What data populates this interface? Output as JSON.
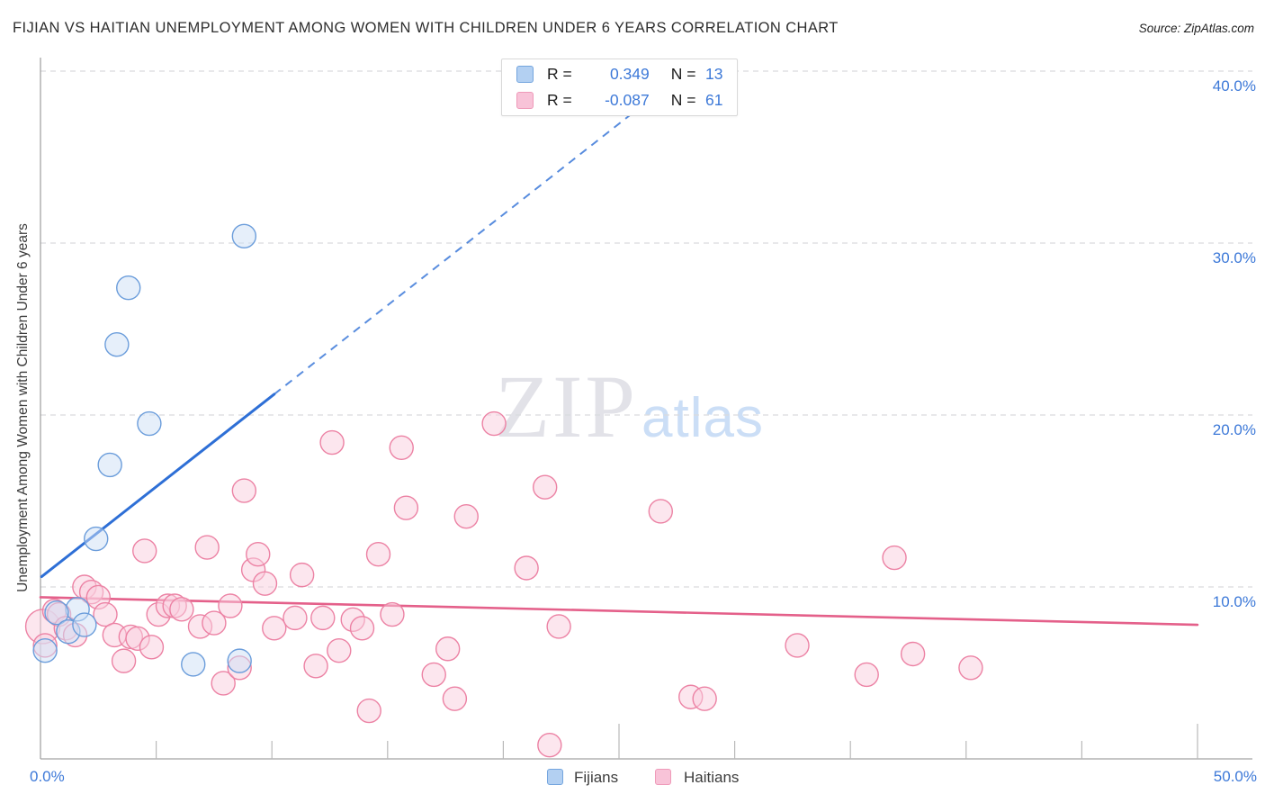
{
  "title": "FIJIAN VS HAITIAN UNEMPLOYMENT AMONG WOMEN WITH CHILDREN UNDER 6 YEARS CORRELATION CHART",
  "source": "Source: ZipAtlas.com",
  "y_axis_title": "Unemployment Among Women with Children Under 6 years",
  "watermark": {
    "zip": "ZIP",
    "atlas": "atlas"
  },
  "legend_box": {
    "rows": [
      {
        "series": "Fijians",
        "r_label": "R =",
        "r_value": "0.349",
        "n_label": "N =",
        "n_value": "13"
      },
      {
        "series": "Haitians",
        "r_label": "R =",
        "r_value": "-0.087",
        "n_label": "N =",
        "n_value": "61"
      }
    ]
  },
  "bottom_legend": {
    "fijians": "Fijians",
    "haitians": "Haitians"
  },
  "colors": {
    "fijian_fill": "#cddff5",
    "fijian_stroke": "#6b9ddb",
    "haitian_fill": "#f9cede",
    "haitian_stroke": "#ec82a4",
    "fijian_trend": "#2e6fd6",
    "haitian_trend": "#e4608a",
    "grid": "#d9dbdd",
    "axis": "#a3a3a3",
    "tick_label": "#3d79d8"
  },
  "chart_data": {
    "type": "scatter",
    "xlabel_min": "0.0%",
    "xlabel_max": "50.0%",
    "x_range": [
      0,
      50
    ],
    "y_range": [
      0,
      40.9
    ],
    "y_ticks": [
      {
        "value": 40,
        "label": "40.0%"
      },
      {
        "value": 30,
        "label": "30.0%"
      },
      {
        "value": 20,
        "label": "20.0%"
      },
      {
        "value": 10,
        "label": "10.0%"
      }
    ],
    "x_minor_ticks": [
      5,
      10,
      15,
      20,
      30,
      35,
      40,
      45
    ],
    "x_major_ticks": [
      25,
      50
    ],
    "grid": "dashed-horizontal",
    "legend_position": "bottom-center",
    "series": [
      {
        "name": "Fijians",
        "r": 0.349,
        "n": 13,
        "points": [
          [
            8.8,
            30.4
          ],
          [
            3.8,
            27.4
          ],
          [
            3.3,
            24.1
          ],
          [
            4.7,
            19.5
          ],
          [
            3.0,
            17.1
          ],
          [
            2.4,
            12.8
          ],
          [
            1.6,
            8.7
          ],
          [
            0.7,
            8.5
          ],
          [
            1.2,
            7.4
          ],
          [
            1.9,
            7.8
          ],
          [
            0.2,
            6.3
          ],
          [
            6.6,
            5.5
          ],
          [
            8.6,
            5.7
          ]
        ],
        "trend": {
          "x1": 0.05,
          "y1": 10.6,
          "x2": 27.9,
          "y2": 40.0,
          "solid_until_x": 10.1
        }
      },
      {
        "name": "Haitians",
        "r": -0.087,
        "n": 61,
        "points": [
          [
            0.1,
            7.7,
            19
          ],
          [
            0.2,
            6.6
          ],
          [
            0.6,
            8.6
          ],
          [
            0.8,
            8.4
          ],
          [
            1.1,
            7.6
          ],
          [
            1.5,
            7.2
          ],
          [
            1.9,
            10.0
          ],
          [
            2.2,
            9.7
          ],
          [
            2.5,
            9.4
          ],
          [
            2.8,
            8.4
          ],
          [
            3.2,
            7.2
          ],
          [
            3.6,
            5.7
          ],
          [
            3.9,
            7.1
          ],
          [
            4.2,
            7.0
          ],
          [
            4.5,
            12.1
          ],
          [
            4.8,
            6.5
          ],
          [
            5.1,
            8.4
          ],
          [
            5.5,
            8.9
          ],
          [
            5.8,
            8.9
          ],
          [
            6.1,
            8.7
          ],
          [
            6.9,
            7.7
          ],
          [
            7.2,
            12.3
          ],
          [
            7.5,
            7.9
          ],
          [
            7.9,
            4.4
          ],
          [
            8.2,
            8.9
          ],
          [
            8.6,
            5.3
          ],
          [
            8.8,
            15.6
          ],
          [
            9.2,
            11.0
          ],
          [
            9.4,
            11.9
          ],
          [
            9.7,
            10.2
          ],
          [
            10.1,
            7.6
          ],
          [
            11.0,
            8.2
          ],
          [
            11.3,
            10.7
          ],
          [
            11.9,
            5.4
          ],
          [
            12.2,
            8.2
          ],
          [
            12.6,
            18.4
          ],
          [
            12.9,
            6.3
          ],
          [
            13.5,
            8.1
          ],
          [
            13.9,
            7.6
          ],
          [
            14.2,
            2.8
          ],
          [
            14.6,
            11.9
          ],
          [
            15.2,
            8.4
          ],
          [
            15.6,
            18.1
          ],
          [
            15.8,
            14.6
          ],
          [
            17.0,
            4.9
          ],
          [
            17.6,
            6.4
          ],
          [
            17.9,
            3.5
          ],
          [
            18.4,
            14.1
          ],
          [
            19.6,
            19.5
          ],
          [
            21.0,
            11.1
          ],
          [
            21.8,
            15.8
          ],
          [
            22.0,
            0.8
          ],
          [
            22.4,
            7.7
          ],
          [
            26.8,
            14.4
          ],
          [
            28.1,
            3.6
          ],
          [
            28.7,
            3.5
          ],
          [
            32.7,
            6.6
          ],
          [
            35.7,
            4.9
          ],
          [
            36.9,
            11.7
          ],
          [
            37.7,
            6.1
          ],
          [
            40.2,
            5.3
          ]
        ],
        "trend": {
          "x1": 0,
          "y1": 9.4,
          "x2": 50,
          "y2": 7.8
        }
      }
    ]
  }
}
